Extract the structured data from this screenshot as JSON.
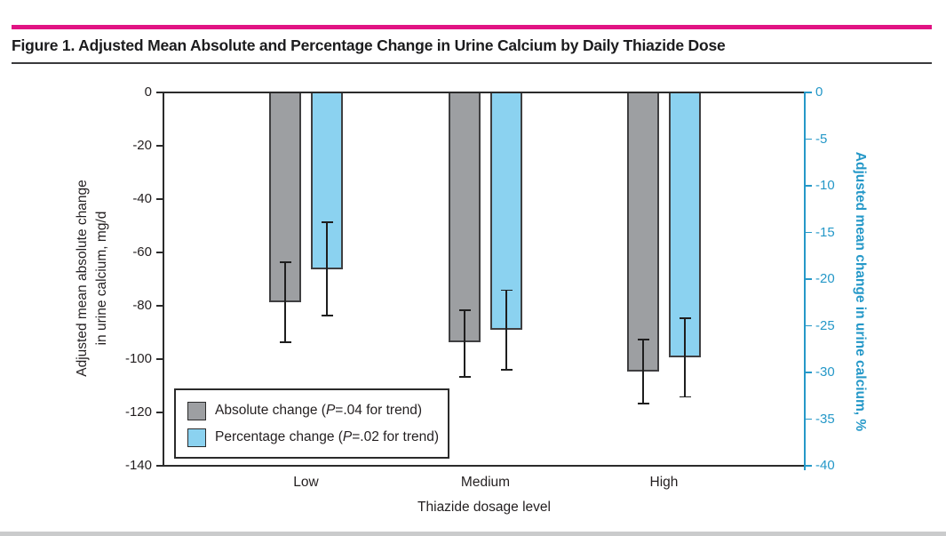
{
  "header": {
    "title": "Figure 1. Adjusted Mean Absolute and Percentage Change in Urine Calcium by Daily Thiazide Dose"
  },
  "colors": {
    "accent_magenta": "#e11383",
    "gray_bar_fill": "#9d9fa2",
    "blue_bar_fill": "#8bd2f0",
    "bar_border": "#3f3f41",
    "cyan_axis": "#2598c8",
    "error_bar": "#1e1e1e",
    "axis_black": "#2b2b2b"
  },
  "chart_data": {
    "type": "bar",
    "title": "Figure 1. Adjusted Mean Absolute and Percentage Change in Urine Calcium by Daily Thiazide Dose",
    "categories": [
      "Low",
      "Medium",
      "High"
    ],
    "xlabel": "Thiazide dosage level",
    "grid": false,
    "legend_position": "bottom-left-inside",
    "left_axis": {
      "label_line1": "Adjusted mean absolute change",
      "label_line2": "in urine calcium, mg/d",
      "ticks": [
        0,
        -20,
        -40,
        -60,
        -80,
        -100,
        -120,
        -140
      ],
      "range": [
        0,
        -140
      ]
    },
    "right_axis": {
      "label": "Adjusted mean change in urine calcium, %",
      "ticks": [
        0,
        -5,
        -10,
        -15,
        -20,
        -25,
        -30,
        -35,
        -40
      ],
      "range": [
        0,
        -40
      ]
    },
    "series": [
      {
        "name": "Absolute change",
        "unit": "mg/d",
        "axis": "left",
        "color": "#9d9fa2",
        "values": [
          -79,
          -94,
          -105
        ],
        "ci_upper": [
          -64,
          -82,
          -93
        ],
        "ci_lower": [
          -94,
          -107,
          -117
        ]
      },
      {
        "name": "Percentage change",
        "unit": "%",
        "axis": "right",
        "color": "#8bd2f0",
        "values": [
          -19,
          -25.5,
          -28.5
        ],
        "ci_upper": [
          -14,
          -21.3,
          -24.3
        ],
        "ci_lower": [
          -24,
          -29.8,
          -32.7
        ]
      }
    ],
    "legend": {
      "items": [
        {
          "swatch_color": "#9d9fa2",
          "pre": "Absolute change (",
          "italic": "P",
          "post": "=.04 for trend)"
        },
        {
          "swatch_color": "#8bd2f0",
          "pre": "Percentage change (",
          "italic": "P",
          "post": "=.02 for trend)"
        }
      ]
    }
  }
}
